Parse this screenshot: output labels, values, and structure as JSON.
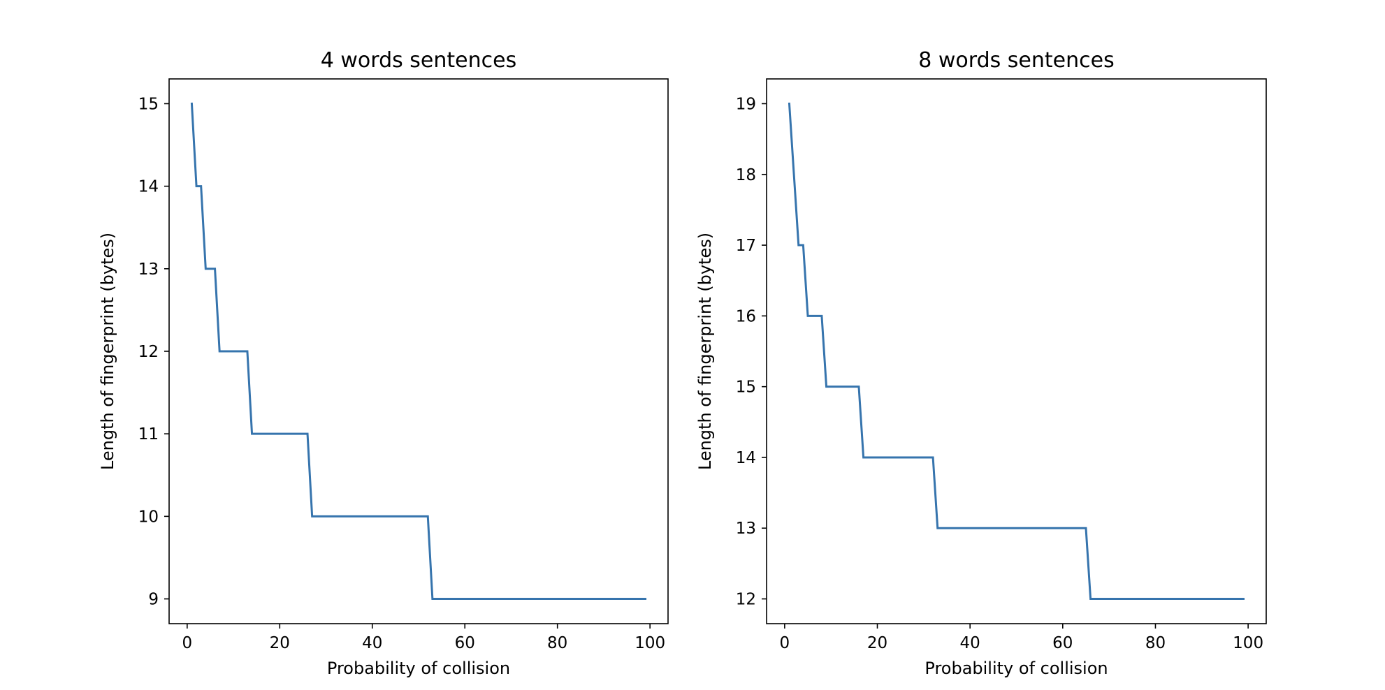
{
  "chart_data": [
    {
      "type": "line",
      "title": "4 words sentences",
      "xlabel": "Probability of collision",
      "ylabel": "Length of fingerprint (bytes)",
      "xlim": [
        -3.9,
        103.9
      ],
      "ylim": [
        8.7,
        15.3
      ],
      "xticks": [
        0,
        20,
        40,
        60,
        80,
        100
      ],
      "yticks": [
        9,
        10,
        11,
        12,
        13,
        14,
        15
      ],
      "grid": false,
      "series": [
        {
          "color": "#3674ad",
          "x": [
            1,
            2,
            3,
            4,
            5,
            6,
            7,
            8,
            9,
            10,
            11,
            12,
            13,
            14,
            15,
            16,
            17,
            18,
            19,
            20,
            21,
            22,
            23,
            24,
            25,
            26,
            27,
            28,
            29,
            30,
            31,
            32,
            33,
            34,
            35,
            36,
            37,
            38,
            39,
            40,
            41,
            42,
            43,
            44,
            45,
            46,
            47,
            48,
            49,
            50,
            51,
            52,
            53,
            54,
            55,
            56,
            57,
            58,
            59,
            60,
            61,
            62,
            63,
            64,
            65,
            66,
            67,
            68,
            69,
            70,
            71,
            72,
            73,
            74,
            75,
            76,
            77,
            78,
            79,
            80,
            81,
            82,
            83,
            84,
            85,
            86,
            87,
            88,
            89,
            90,
            91,
            92,
            93,
            94,
            95,
            96,
            97,
            98,
            99
          ],
          "y": [
            15,
            14,
            14,
            13,
            13,
            13,
            12,
            12,
            12,
            12,
            12,
            12,
            12,
            11,
            11,
            11,
            11,
            11,
            11,
            11,
            11,
            11,
            11,
            11,
            11,
            11,
            10,
            10,
            10,
            10,
            10,
            10,
            10,
            10,
            10,
            10,
            10,
            10,
            10,
            10,
            10,
            10,
            10,
            10,
            10,
            10,
            10,
            10,
            10,
            10,
            10,
            10,
            9,
            9,
            9,
            9,
            9,
            9,
            9,
            9,
            9,
            9,
            9,
            9,
            9,
            9,
            9,
            9,
            9,
            9,
            9,
            9,
            9,
            9,
            9,
            9,
            9,
            9,
            9,
            9,
            9,
            9,
            9,
            9,
            9,
            9,
            9,
            9,
            9,
            9,
            9,
            9,
            9,
            9,
            9,
            9,
            9,
            9,
            9
          ]
        }
      ]
    },
    {
      "type": "line",
      "title": "8 words sentences",
      "xlabel": "Probability of collision",
      "ylabel": "Length of fingerprint (bytes)",
      "xlim": [
        -3.9,
        103.9
      ],
      "ylim": [
        11.65,
        19.35
      ],
      "xticks": [
        0,
        20,
        40,
        60,
        80,
        100
      ],
      "yticks": [
        12,
        13,
        14,
        15,
        16,
        17,
        18,
        19
      ],
      "grid": false,
      "series": [
        {
          "color": "#3674ad",
          "x": [
            1,
            2,
            3,
            4,
            5,
            6,
            7,
            8,
            9,
            10,
            11,
            12,
            13,
            14,
            15,
            16,
            17,
            18,
            19,
            20,
            21,
            22,
            23,
            24,
            25,
            26,
            27,
            28,
            29,
            30,
            31,
            32,
            33,
            34,
            35,
            36,
            37,
            38,
            39,
            40,
            41,
            42,
            43,
            44,
            45,
            46,
            47,
            48,
            49,
            50,
            51,
            52,
            53,
            54,
            55,
            56,
            57,
            58,
            59,
            60,
            61,
            62,
            63,
            64,
            65,
            66,
            67,
            68,
            69,
            70,
            71,
            72,
            73,
            74,
            75,
            76,
            77,
            78,
            79,
            80,
            81,
            82,
            83,
            84,
            85,
            86,
            87,
            88,
            89,
            90,
            91,
            92,
            93,
            94,
            95,
            96,
            97,
            98,
            99
          ],
          "y": [
            19,
            18,
            17,
            17,
            16,
            16,
            16,
            16,
            15,
            15,
            15,
            15,
            15,
            15,
            15,
            15,
            14,
            14,
            14,
            14,
            14,
            14,
            14,
            14,
            14,
            14,
            14,
            14,
            14,
            14,
            14,
            14,
            13,
            13,
            13,
            13,
            13,
            13,
            13,
            13,
            13,
            13,
            13,
            13,
            13,
            13,
            13,
            13,
            13,
            13,
            13,
            13,
            13,
            13,
            13,
            13,
            13,
            13,
            13,
            13,
            13,
            13,
            13,
            13,
            13,
            12,
            12,
            12,
            12,
            12,
            12,
            12,
            12,
            12,
            12,
            12,
            12,
            12,
            12,
            12,
            12,
            12,
            12,
            12,
            12,
            12,
            12,
            12,
            12,
            12,
            12,
            12,
            12,
            12,
            12,
            12,
            12,
            12,
            12
          ]
        }
      ]
    }
  ]
}
